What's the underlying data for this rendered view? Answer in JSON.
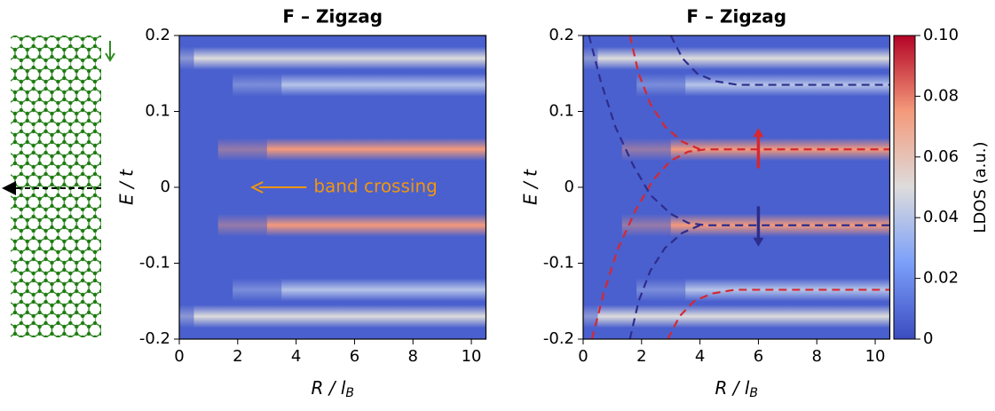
{
  "chart_data": [
    {
      "type": "heatmap",
      "title": "F – Zigzag",
      "xlabel": "R / l",
      "xlabel_sub": "B",
      "ylabel": "E / t",
      "xlim": [
        0,
        10.5
      ],
      "xticks": [
        0,
        2,
        4,
        6,
        8,
        10
      ],
      "ylim": [
        -0.2,
        0.2
      ],
      "yticks": [
        0.2,
        0.1,
        0,
        -0.1,
        -0.2
      ],
      "background_ldos": 0.006,
      "bands": {
        "E": [
          0.17,
          0.135,
          0.05,
          -0.05,
          -0.135,
          -0.17
        ],
        "ldos": [
          0.05,
          0.04,
          0.075,
          0.075,
          0.04,
          0.05
        ],
        "R_start": [
          0.5,
          3.5,
          3,
          3,
          3.5,
          0.5
        ]
      },
      "annotation": {
        "text": "band crossing",
        "color": "#f0960f",
        "xy": [
          2.5,
          0
        ],
        "xytext": [
          4.6,
          0
        ]
      }
    },
    {
      "type": "heatmap",
      "title": "F – Zigzag",
      "xlabel": "R / l",
      "xlabel_sub": "B",
      "ylabel": "E / t",
      "xlim": [
        0,
        10.5
      ],
      "xticks": [
        0,
        2,
        4,
        6,
        8,
        10
      ],
      "ylim": [
        -0.2,
        0.2
      ],
      "yticks": [
        0.2,
        0.1,
        0,
        -0.1,
        -0.2
      ],
      "background_ldos": 0.006,
      "bands": {
        "E": [
          0.17,
          0.135,
          0.05,
          -0.05,
          -0.135,
          -0.17
        ],
        "ldos": [
          0.05,
          0.04,
          0.075,
          0.075,
          0.04,
          0.05
        ],
        "R_start": [
          0.5,
          3.5,
          3,
          3,
          3.5,
          0.5
        ]
      },
      "curves": [
        {
          "color": "#d62830",
          "x": [
            0.3,
            0.7,
            1.2,
            1.8,
            2.4,
            3.0,
            3.6,
            4.2,
            10.5
          ],
          "y": [
            -0.2,
            -0.14,
            -0.08,
            -0.03,
            0.01,
            0.035,
            0.047,
            0.05,
            0.05
          ]
        },
        {
          "color": "#2e2d8c",
          "x": [
            0.2,
            0.6,
            1.1,
            1.7,
            2.3,
            3.0,
            3.6,
            4.2,
            10.5
          ],
          "y": [
            0.2,
            0.14,
            0.08,
            0.03,
            -0.01,
            -0.035,
            -0.047,
            -0.05,
            -0.05
          ]
        },
        {
          "color": "#d62830",
          "x": [
            1.6,
            1.9,
            2.3,
            2.8,
            3.4,
            4.0
          ],
          "y": [
            0.2,
            0.15,
            0.11,
            0.08,
            0.06,
            0.05
          ]
        },
        {
          "color": "#2e2d8c",
          "x": [
            1.6,
            1.9,
            2.3,
            2.8,
            3.4,
            4.0
          ],
          "y": [
            -0.2,
            -0.15,
            -0.11,
            -0.08,
            -0.06,
            -0.05
          ]
        },
        {
          "color": "#d62830",
          "x": [
            2.9,
            3.3,
            3.8,
            4.4,
            5.2,
            10.5
          ],
          "y": [
            -0.2,
            -0.17,
            -0.15,
            -0.14,
            -0.135,
            -0.135
          ]
        },
        {
          "color": "#2e2d8c",
          "x": [
            3.0,
            3.4,
            3.9,
            4.5,
            5.3,
            10.5
          ],
          "y": [
            0.2,
            0.17,
            0.15,
            0.14,
            0.135,
            0.135
          ]
        }
      ],
      "spin_arrows": [
        {
          "color": "#d62830",
          "x": 6,
          "y": [
            0.025,
            0.078
          ]
        },
        {
          "color": "#2e2d8c",
          "x": 6,
          "y": [
            -0.025,
            -0.078
          ]
        }
      ],
      "colorbar": {
        "label": "LDOS (a.u.)",
        "lim": [
          0,
          0.1
        ],
        "ticks": [
          0,
          0.02,
          0.04,
          0.06,
          0.08,
          {
            "value": 0.1,
            "label": "0.10"
          }
        ],
        "colors": [
          "#3b4cc0",
          "#7b9ff9",
          "#dddcdc",
          "#f49a7b",
          "#b40426"
        ]
      }
    }
  ]
}
